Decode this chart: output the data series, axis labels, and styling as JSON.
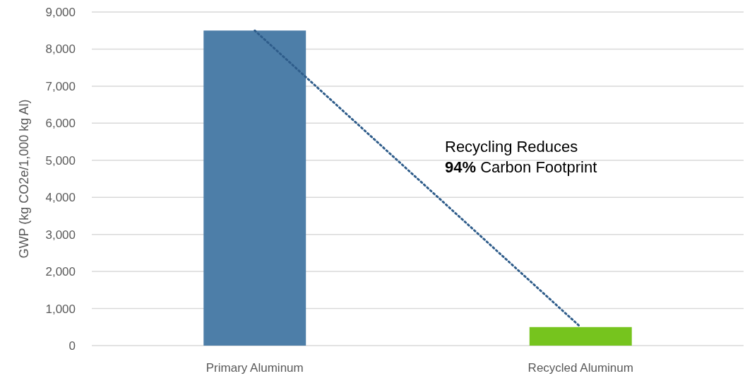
{
  "chart_data": {
    "type": "bar",
    "ylabel": "GWP (kg CO2e/1,000 kg Al)",
    "categories": [
      "Primary Aluminum",
      "Recycled Aluminum"
    ],
    "series": [
      {
        "colors": [
          "#4d7ea8",
          "#76c41e"
        ],
        "values": [
          8500,
          500
        ]
      },
      {
        "type": "line",
        "color": "#2e5c8a",
        "line_style": "dotted",
        "values": [
          8500,
          500
        ]
      }
    ],
    "ylim": [
      0,
      9000
    ],
    "yticks": [
      {
        "value": 0,
        "label": "0"
      },
      {
        "value": 1000,
        "label": "1,000"
      },
      {
        "value": 2000,
        "label": "2,000"
      },
      {
        "value": 3000,
        "label": "3,000"
      },
      {
        "value": 4000,
        "label": "4,000"
      },
      {
        "value": 5000,
        "label": "5,000"
      },
      {
        "value": 6000,
        "label": "6,000"
      },
      {
        "value": 7000,
        "label": "7,000"
      },
      {
        "value": 8000,
        "label": "8,000"
      },
      {
        "value": 9000,
        "label": "9,000"
      }
    ],
    "grid": "y",
    "annotations": [
      "Recycling Reduces\n94% Carbon Footprint"
    ]
  }
}
